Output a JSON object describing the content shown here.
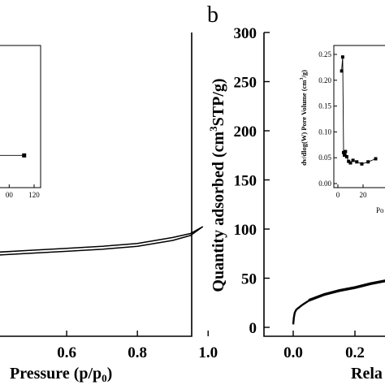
{
  "chart_data": [
    {
      "panel": "a",
      "type": "line",
      "xlabel": "Pressure (p/p",
      "xlabel_sub": "0",
      "xlabel_end": ")",
      "xticks": [
        "0.6",
        "0.8",
        "1.0"
      ],
      "xlim": [
        0.4,
        1.05
      ],
      "ylim": [
        0,
        300
      ],
      "grid": false,
      "series": [
        {
          "x": [
            0.4,
            0.5,
            0.6,
            0.7,
            0.8,
            0.9,
            0.95,
            0.985
          ],
          "y": [
            77,
            79,
            81,
            83,
            86,
            92,
            96,
            103
          ]
        },
        {
          "x": [
            0.4,
            0.5,
            0.6,
            0.7,
            0.8,
            0.9,
            0.95,
            0.985
          ],
          "y": [
            74,
            76,
            78,
            80,
            83,
            89,
            94,
            103
          ]
        }
      ],
      "inset": {
        "xticks": [
          "00",
          "120"
        ],
        "x": [
          90,
          100,
          112
        ],
        "y": [
          0.03,
          0.03,
          0.03
        ]
      }
    },
    {
      "panel": "b",
      "letter": "b",
      "type": "line",
      "ylabel": "Quantity adsorbed (cm³STP/g)",
      "ylabel_parts": [
        "Quantity adsorbed (cm",
        "3",
        "STP/g)"
      ],
      "xlabel": "Rela",
      "xticks": [
        "0.0",
        "0.2"
      ],
      "yticks": [
        "0",
        "50",
        "100",
        "150",
        "200",
        "250",
        "300"
      ],
      "ylim": [
        0,
        300
      ],
      "xlim": [
        -0.03,
        0.35
      ],
      "grid": false,
      "series": [
        {
          "x": [
            0.0,
            0.002,
            0.005,
            0.01,
            0.03,
            0.05,
            0.1,
            0.15,
            0.2,
            0.25,
            0.3,
            0.33
          ],
          "y": [
            3,
            10,
            15,
            18,
            23,
            27,
            33,
            37,
            40,
            44,
            47,
            49
          ]
        },
        {
          "x": [
            0.05,
            0.1,
            0.15,
            0.2,
            0.25,
            0.3,
            0.33
          ],
          "y": [
            28,
            34,
            38,
            41,
            45,
            48,
            50
          ]
        }
      ],
      "inset": {
        "ylabel": "dv/dlog(W) Pore Volume (cm³/g)",
        "ylabel_parts": [
          "dv/dlog(W) Pore Volume (cm",
          "3",
          "/g)"
        ],
        "xlabel": "Po",
        "xticks": [
          "0",
          "20"
        ],
        "yticks": [
          "0.00",
          "0.05",
          "0.10",
          "0.15",
          "0.20",
          "0.25"
        ],
        "ylim": [
          0,
          0.26
        ],
        "xlim": [
          -3,
          30
        ],
        "x": [
          3,
          3.8,
          4.5,
          5.2,
          6,
          7,
          8.5,
          10,
          12,
          15,
          19,
          24,
          30
        ],
        "y": [
          0.218,
          0.245,
          0.06,
          0.055,
          0.062,
          0.052,
          0.043,
          0.04,
          0.045,
          0.042,
          0.038,
          0.042,
          0.048
        ]
      }
    }
  ]
}
